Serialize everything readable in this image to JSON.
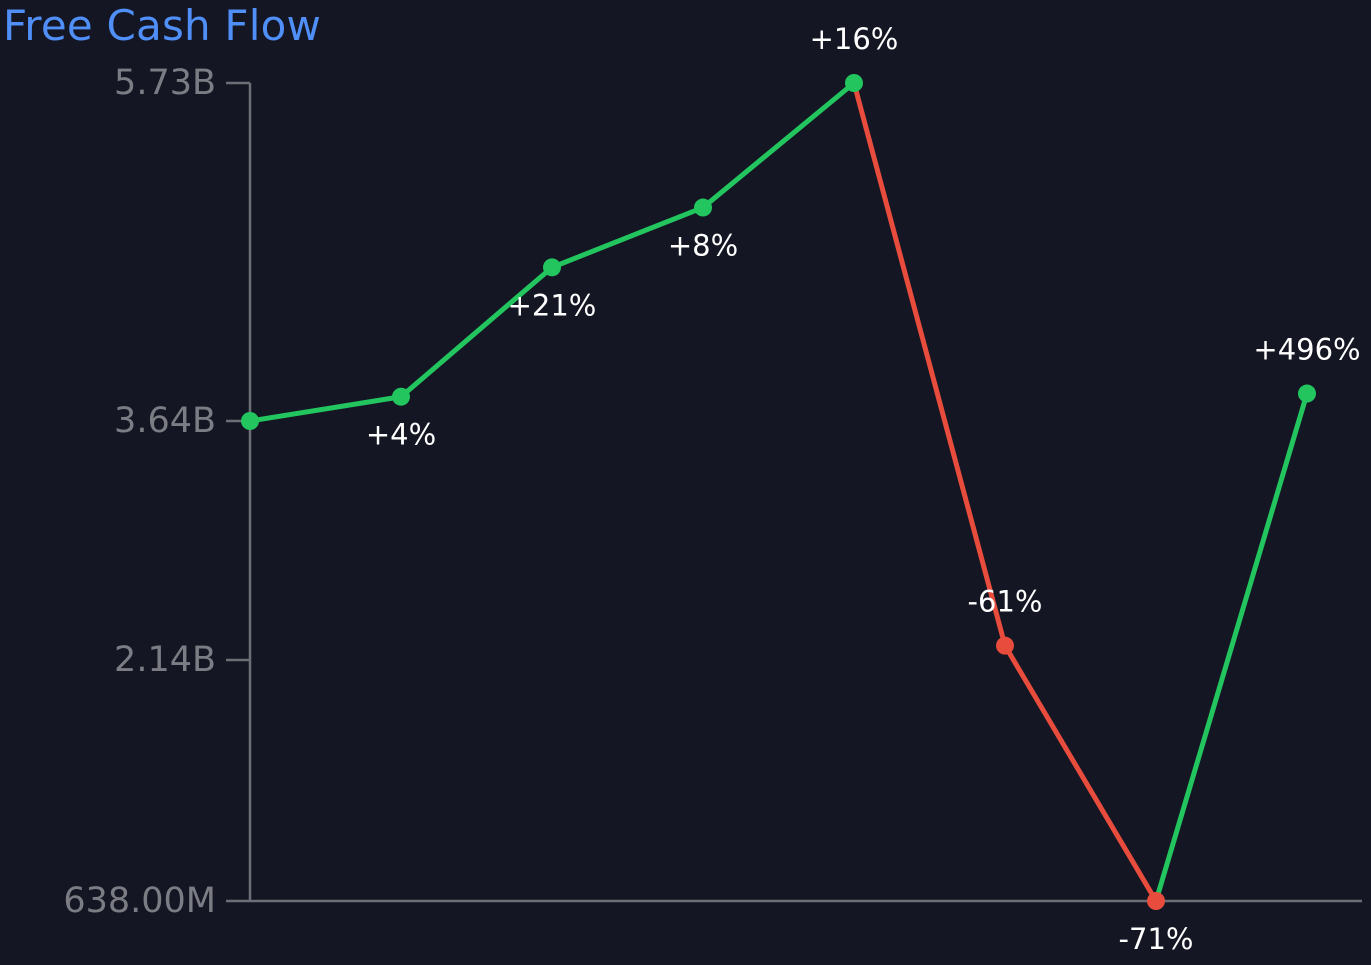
{
  "chart_data": {
    "type": "line",
    "title": "Free Cash Flow",
    "xlabel": "",
    "ylabel": "",
    "y_ticks": [
      {
        "value": 638000000,
        "label": "638.00M"
      },
      {
        "value": 2140000000,
        "label": "2.14B"
      },
      {
        "value": 3640000000,
        "label": "3.64B"
      },
      {
        "value": 5730000000,
        "label": "5.73B"
      }
    ],
    "ylim": [
      638000000,
      5730000000
    ],
    "series": [
      {
        "values": [
          3640000000,
          3790000000,
          4590000000,
          4960000000,
          5730000000,
          2230000000,
          638000000,
          3810000000
        ],
        "change_labels": [
          "",
          "+4%",
          "+21%",
          "+8%",
          "+16%",
          "-61%",
          "-71%",
          "+496%"
        ],
        "label_positions": [
          "none",
          "below",
          "below",
          "below",
          "above",
          "above",
          "below",
          "above"
        ]
      }
    ],
    "colors": {
      "up": "#22c55e",
      "down": "#e74c3c",
      "axis": "#6e6f76",
      "title": "#4f8ff7"
    },
    "grid": false
  }
}
